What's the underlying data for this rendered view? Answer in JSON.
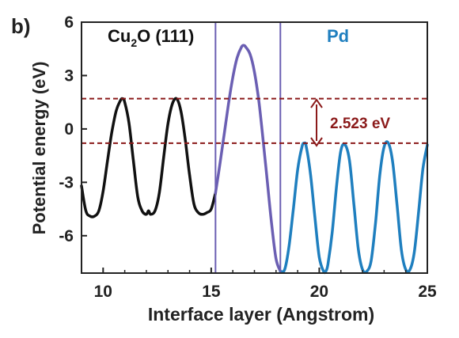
{
  "panel_label": "b)",
  "chart_data": {
    "type": "line",
    "xlabel": "Interface layer (Angstrom)",
    "ylabel": "Potential energy (eV)",
    "xlim": [
      9,
      25
    ],
    "ylim": [
      -8.1,
      6
    ],
    "xticks": [
      10,
      15,
      20,
      25
    ],
    "yticks": [
      -6,
      -3,
      0,
      3,
      6
    ],
    "grid": false,
    "region_labels": [
      {
        "text_main": "Cu",
        "text_sub": "2",
        "text_rest": "O (111)",
        "color": "#111111"
      },
      {
        "text": "Pd",
        "color": "#1f7fbf"
      }
    ],
    "interface_lines_x": [
      15.2,
      18.2
    ],
    "interface_line_color": "#6b5fb3",
    "reference_lines_y": [
      1.7,
      -0.8
    ],
    "reference_line_color": "#8b1a1a",
    "annotation": {
      "text": "2.523 eV",
      "color": "#8b1a1a"
    },
    "series": [
      {
        "color": "#111111",
        "x": [
          9.0,
          9.2,
          9.4,
          9.6,
          9.8,
          10.0,
          10.2,
          10.4,
          10.6,
          10.8,
          10.9,
          11.0,
          11.2,
          11.4,
          11.6,
          11.8,
          12.0,
          12.1,
          12.2,
          12.4,
          12.6,
          12.8,
          13.0,
          13.2,
          13.4,
          13.6,
          13.8,
          14.0,
          14.2,
          14.4,
          14.6,
          14.8,
          15.0,
          15.2
        ],
        "y": [
          -3.2,
          -4.6,
          -4.9,
          -4.9,
          -4.6,
          -3.5,
          -1.8,
          -0.2,
          1.0,
          1.6,
          1.7,
          1.5,
          0.3,
          -1.8,
          -3.8,
          -4.6,
          -4.8,
          -4.6,
          -4.8,
          -4.6,
          -3.6,
          -1.6,
          0.3,
          1.4,
          1.7,
          1.0,
          -0.6,
          -2.6,
          -4.2,
          -4.7,
          -4.8,
          -4.7,
          -4.5,
          -3.6
        ]
      },
      {
        "color": "#6b5fb3",
        "x": [
          15.2,
          15.4,
          15.6,
          15.8,
          16.0,
          16.2,
          16.4,
          16.5,
          16.6,
          16.8,
          17.0,
          17.2,
          17.4,
          17.6,
          17.8,
          18.0,
          18.2
        ],
        "y": [
          -3.6,
          -2.0,
          -0.3,
          1.4,
          2.9,
          4.0,
          4.6,
          4.7,
          4.6,
          4.2,
          3.2,
          1.6,
          -0.6,
          -3.0,
          -5.4,
          -7.3,
          -8.0
        ]
      },
      {
        "color": "#1f7fbf",
        "x": [
          18.2,
          18.4,
          18.6,
          18.8,
          19.0,
          19.2,
          19.3,
          19.4,
          19.6,
          19.8,
          20.0,
          20.2,
          20.3,
          20.4,
          20.6,
          20.8,
          21.0,
          21.2,
          21.4,
          21.6,
          21.8,
          22.0,
          22.2,
          22.4,
          22.6,
          22.8,
          23.0,
          23.2,
          23.4,
          23.6,
          23.8,
          24.0,
          24.2,
          24.4,
          24.6,
          24.8,
          25.0
        ],
        "y": [
          -8.0,
          -7.9,
          -6.6,
          -4.5,
          -2.3,
          -1.0,
          -0.8,
          -1.0,
          -2.6,
          -5.0,
          -7.2,
          -8.0,
          -8.0,
          -7.6,
          -5.8,
          -3.2,
          -1.2,
          -0.9,
          -1.8,
          -4.2,
          -6.7,
          -7.9,
          -8.0,
          -7.4,
          -5.3,
          -2.6,
          -1.0,
          -0.8,
          -1.9,
          -4.3,
          -6.8,
          -7.9,
          -7.9,
          -6.9,
          -4.6,
          -2.2,
          -0.9
        ]
      }
    ]
  }
}
